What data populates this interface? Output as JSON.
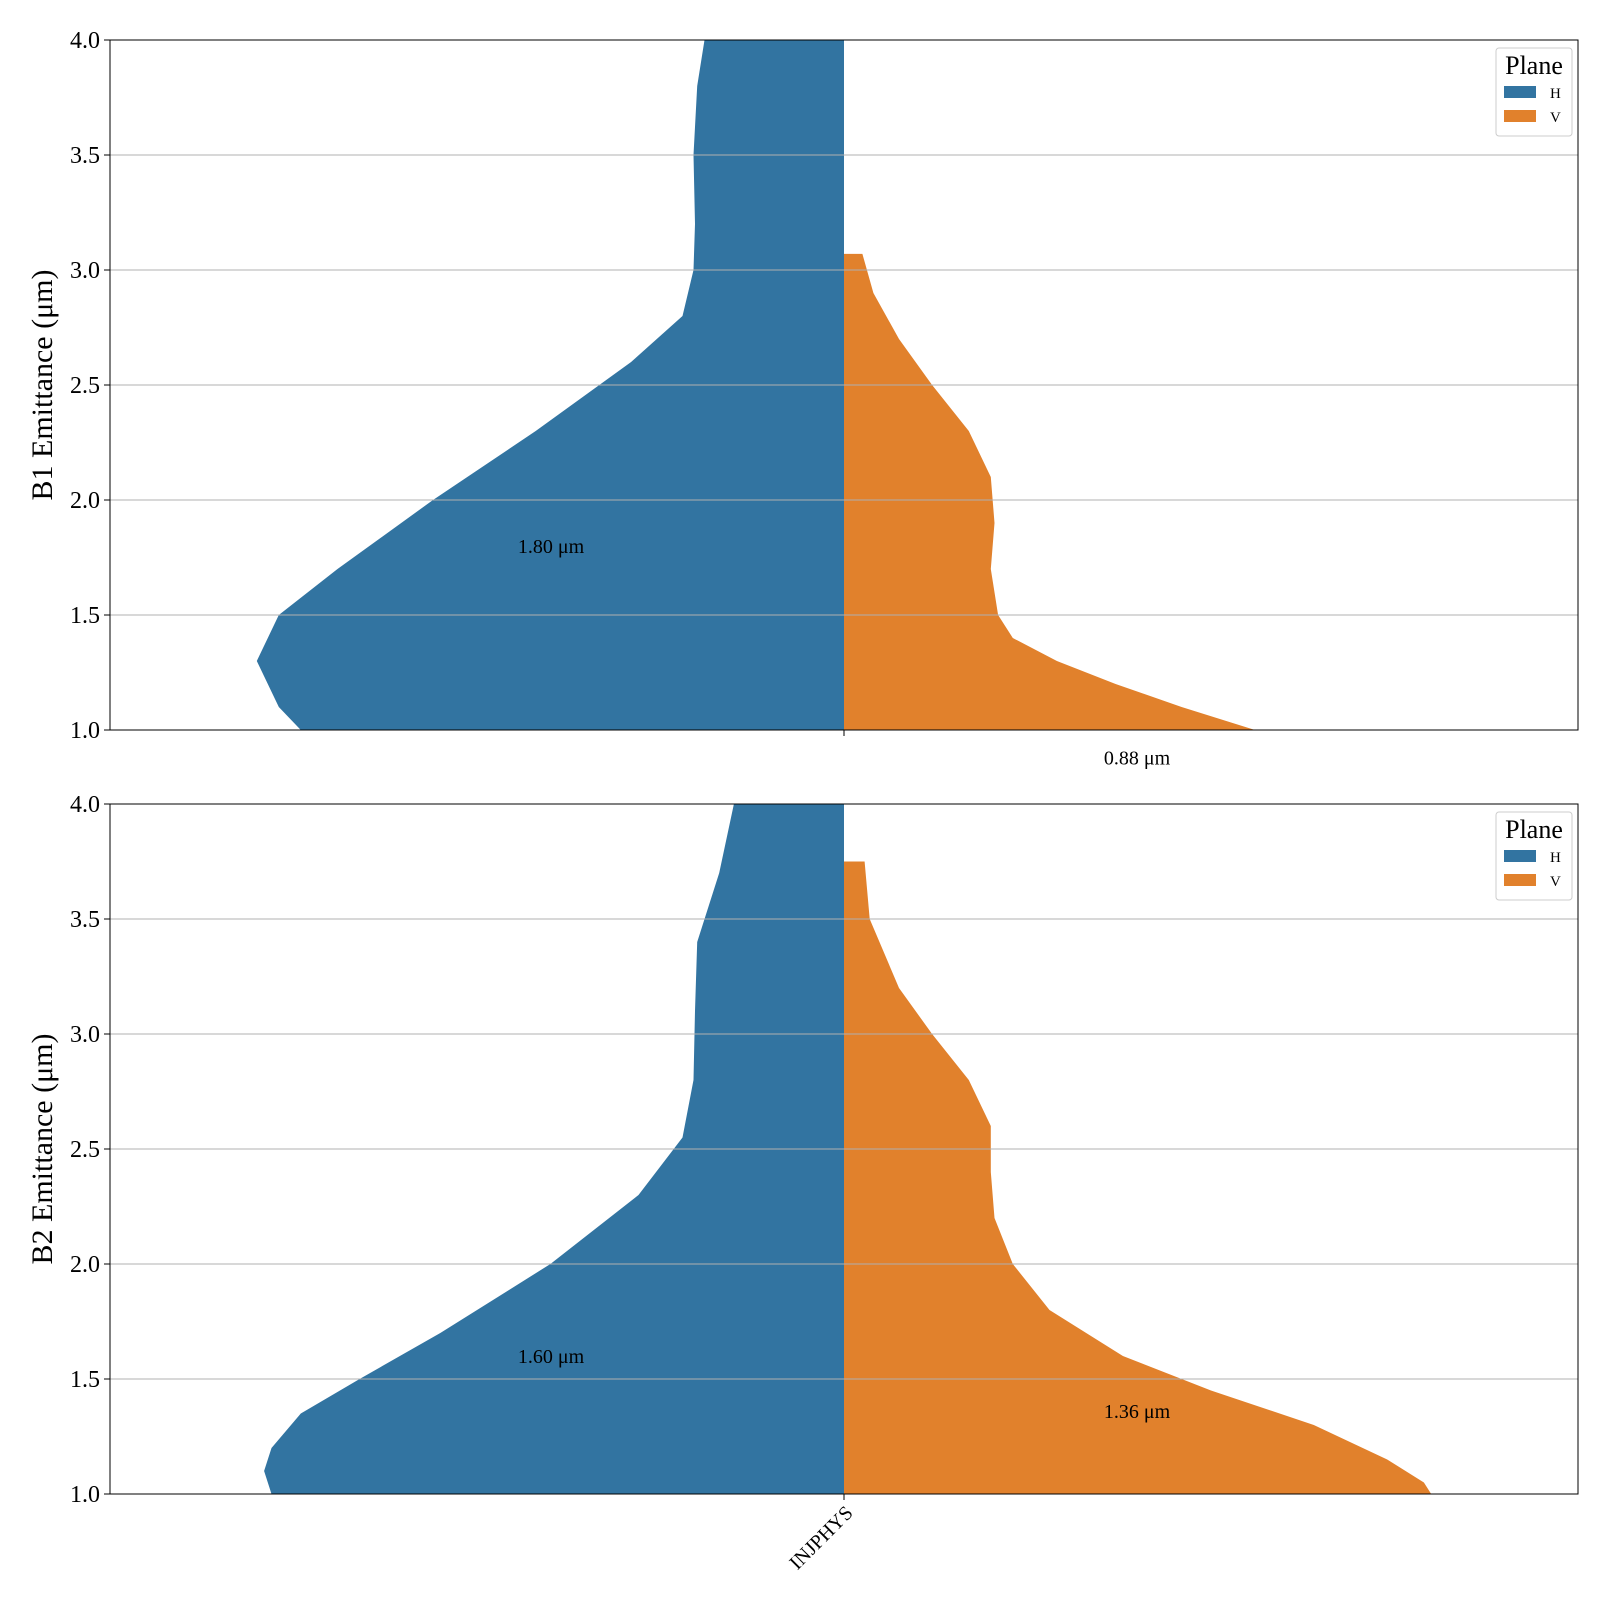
{
  "chart_data": [
    {
      "type": "violin",
      "ylabel": "B1 Emittance (μm)",
      "ylim": [
        1.0,
        4.0
      ],
      "yticks": [
        "1.0",
        "1.5",
        "2.0",
        "2.5",
        "3.0",
        "3.5",
        "4.0"
      ],
      "grid": "y",
      "categories": [
        "INJPHYS"
      ],
      "show_category_labels": false,
      "legend": {
        "title": "Plane",
        "placement": "top-right",
        "entries": [
          "H",
          "V"
        ]
      },
      "series": [
        {
          "name": "H",
          "color": "#3274a1",
          "side": "left",
          "profile": [
            [
              1.0,
              0.74
            ],
            [
              1.1,
              0.77
            ],
            [
              1.3,
              0.8
            ],
            [
              1.5,
              0.77
            ],
            [
              1.7,
              0.69
            ],
            [
              2.0,
              0.56
            ],
            [
              2.3,
              0.42
            ],
            [
              2.6,
              0.29
            ],
            [
              2.8,
              0.22
            ],
            [
              3.0,
              0.205
            ],
            [
              3.2,
              0.203
            ],
            [
              3.5,
              0.205
            ],
            [
              3.8,
              0.2
            ],
            [
              4.0,
              0.19
            ]
          ],
          "annotation": {
            "text": "1.80 μm",
            "value": 1.8
          }
        },
        {
          "name": "V",
          "color": "#e1812c",
          "side": "right",
          "profile": [
            [
              1.0,
              0.56
            ],
            [
              1.1,
              0.46
            ],
            [
              1.2,
              0.37
            ],
            [
              1.3,
              0.29
            ],
            [
              1.4,
              0.23
            ],
            [
              1.5,
              0.21
            ],
            [
              1.7,
              0.2
            ],
            [
              1.9,
              0.205
            ],
            [
              2.1,
              0.2
            ],
            [
              2.3,
              0.17
            ],
            [
              2.5,
              0.12
            ],
            [
              2.7,
              0.075
            ],
            [
              2.9,
              0.04
            ],
            [
              3.07,
              0.025
            ]
          ],
          "annotation": {
            "text": "0.88 μm",
            "value": 0.88
          }
        }
      ]
    },
    {
      "type": "violin",
      "ylabel": "B2 Emittance (μm)",
      "ylim": [
        1.0,
        4.0
      ],
      "yticks": [
        "1.0",
        "1.5",
        "2.0",
        "2.5",
        "3.0",
        "3.5",
        "4.0"
      ],
      "grid": "y",
      "categories": [
        "INJPHYS"
      ],
      "show_category_labels": true,
      "legend": {
        "title": "Plane",
        "placement": "top-right",
        "entries": [
          "H",
          "V"
        ]
      },
      "series": [
        {
          "name": "H",
          "color": "#3274a1",
          "side": "left",
          "profile": [
            [
              1.0,
              0.78
            ],
            [
              1.1,
              0.79
            ],
            [
              1.2,
              0.78
            ],
            [
              1.35,
              0.74
            ],
            [
              1.5,
              0.66
            ],
            [
              1.7,
              0.55
            ],
            [
              2.0,
              0.4
            ],
            [
              2.3,
              0.28
            ],
            [
              2.55,
              0.22
            ],
            [
              2.8,
              0.205
            ],
            [
              3.1,
              0.203
            ],
            [
              3.4,
              0.2
            ],
            [
              3.7,
              0.17
            ],
            [
              4.0,
              0.15
            ]
          ],
          "annotation": {
            "text": "1.60 μm",
            "value": 1.6
          }
        },
        {
          "name": "V",
          "color": "#e1812c",
          "side": "right",
          "profile": [
            [
              1.0,
              0.8
            ],
            [
              1.05,
              0.79
            ],
            [
              1.15,
              0.74
            ],
            [
              1.3,
              0.64
            ],
            [
              1.45,
              0.5
            ],
            [
              1.6,
              0.38
            ],
            [
              1.8,
              0.28
            ],
            [
              2.0,
              0.23
            ],
            [
              2.2,
              0.205
            ],
            [
              2.4,
              0.2
            ],
            [
              2.6,
              0.2
            ],
            [
              2.8,
              0.17
            ],
            [
              3.0,
              0.12
            ],
            [
              3.2,
              0.075
            ],
            [
              3.5,
              0.035
            ],
            [
              3.75,
              0.028
            ]
          ],
          "annotation": {
            "text": "1.36 μm",
            "value": 1.36
          }
        }
      ]
    }
  ]
}
